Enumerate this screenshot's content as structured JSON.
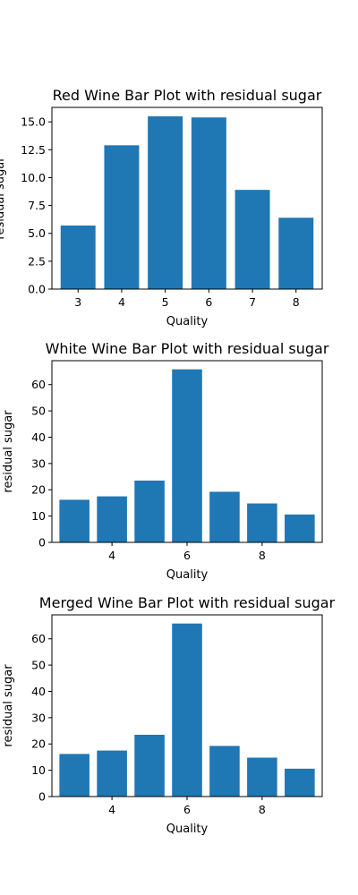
{
  "colors": {
    "bar": "#1f77b4",
    "axis": "#000000",
    "background": "#ffffff"
  },
  "chart_data": [
    {
      "type": "bar",
      "title": "Red Wine Bar Plot with residual sugar",
      "xlabel": "Quality",
      "ylabel": "residual sugar",
      "x": [
        3,
        4,
        5,
        6,
        7,
        8
      ],
      "values": [
        5.7,
        12.9,
        15.5,
        15.4,
        8.9,
        6.4
      ],
      "xlim": [
        2.4,
        8.6
      ],
      "ylim": [
        0,
        16.3
      ],
      "xticks": [
        3,
        4,
        5,
        6,
        7,
        8
      ],
      "xtick_labels": [
        "3",
        "4",
        "5",
        "6",
        "7",
        "8"
      ],
      "yticks": [
        0,
        2.5,
        5,
        7.5,
        10,
        12.5,
        15
      ],
      "ytick_labels": [
        "0.0",
        "2.5",
        "5.0",
        "7.5",
        "10.0",
        "12.5",
        "15.0"
      ],
      "grid": false,
      "legend": "none"
    },
    {
      "type": "bar",
      "title": "White Wine Bar Plot with residual sugar",
      "xlabel": "Quality",
      "ylabel": "residual sugar",
      "x": [
        3,
        4,
        5,
        6,
        7,
        8,
        9
      ],
      "values": [
        16.2,
        17.5,
        23.5,
        65.8,
        19.25,
        14.8,
        10.6
      ],
      "xlim": [
        2.4,
        9.6
      ],
      "ylim": [
        0,
        69.1
      ],
      "xticks": [
        4,
        6,
        8
      ],
      "xtick_labels": [
        "4",
        "6",
        "8"
      ],
      "yticks": [
        0,
        10,
        20,
        30,
        40,
        50,
        60
      ],
      "ytick_labels": [
        "0",
        "10",
        "20",
        "30",
        "40",
        "50",
        "60"
      ],
      "grid": false,
      "legend": "none"
    },
    {
      "type": "bar",
      "title": "Merged Wine Bar Plot with residual sugar",
      "xlabel": "Quality",
      "ylabel": "residual sugar",
      "x": [
        3,
        4,
        5,
        6,
        7,
        8,
        9
      ],
      "values": [
        16.2,
        17.5,
        23.5,
        65.8,
        19.25,
        14.8,
        10.6
      ],
      "xlim": [
        2.4,
        9.6
      ],
      "ylim": [
        0,
        69.1
      ],
      "xticks": [
        4,
        6,
        8
      ],
      "xtick_labels": [
        "4",
        "6",
        "8"
      ],
      "yticks": [
        0,
        10,
        20,
        30,
        40,
        50,
        60
      ],
      "ytick_labels": [
        "0",
        "10",
        "20",
        "30",
        "40",
        "50",
        "60"
      ],
      "grid": false,
      "legend": "none"
    }
  ]
}
